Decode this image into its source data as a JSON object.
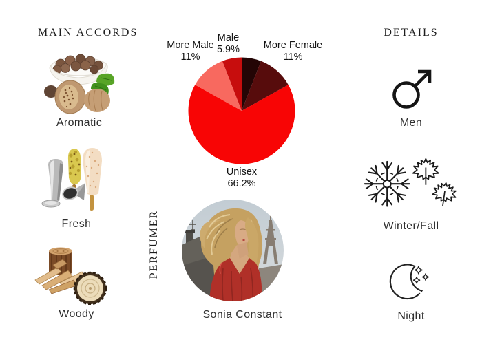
{
  "main_accords": {
    "title": "MAIN ACCORDS",
    "items": [
      {
        "label": "Aromatic",
        "icon": "nutmeg-spices-icon"
      },
      {
        "label": "Fresh",
        "icon": "ice-pops-icon"
      },
      {
        "label": "Woody",
        "icon": "wood-logs-icon"
      }
    ]
  },
  "chart_data": {
    "type": "pie",
    "start": "top",
    "direction": "clockwise",
    "slices": [
      {
        "label": "",
        "display": "",
        "value": 5.9,
        "color": "#240505"
      },
      {
        "label": "More Female",
        "display": "11%",
        "value": 11,
        "color": "#570c0c"
      },
      {
        "label": "Unisex",
        "display": "66.2%",
        "value": 66.2,
        "color": "#f80505"
      },
      {
        "label": "More Male",
        "display": "11%",
        "value": 11,
        "color": "#f8695f"
      },
      {
        "label": "Male",
        "display": "5.9%",
        "value": 5.9,
        "color": "#c70d0d"
      }
    ]
  },
  "perfumer": {
    "section_label": "PERFUMER",
    "name": "Sonia Constant",
    "photo_icon": "sonia-constant-portrait"
  },
  "details": {
    "title": "DETAILS",
    "items": [
      {
        "label": "Men",
        "icon": "mars-male-icon"
      },
      {
        "label": "Winter/Fall",
        "icon": "snowflake-maple-leaves-icon"
      },
      {
        "label": "Night",
        "icon": "crescent-moon-stars-icon"
      }
    ]
  }
}
